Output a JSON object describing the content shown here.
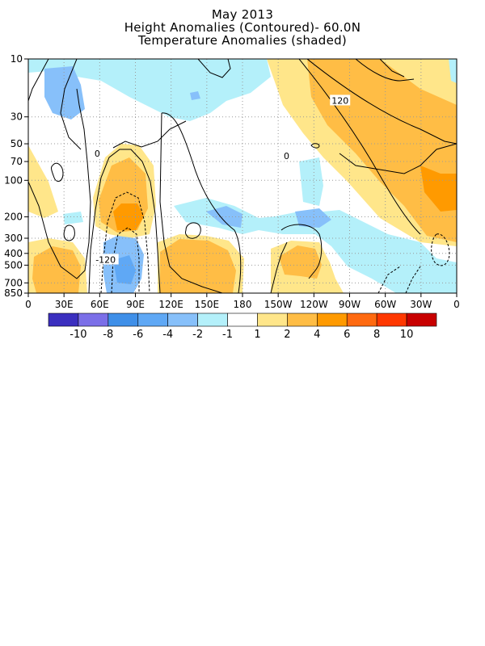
{
  "title": "May 2013",
  "subtitle1": "Height Anomalies (Contoured)- 60.0N",
  "subtitle2": "Temperature Anomalies (shaded)",
  "chart_data": {
    "type": "heatmap",
    "x_tick_labels": [
      "0",
      "30E",
      "60E",
      "90E",
      "120E",
      "150E",
      "180",
      "150W",
      "120W",
      "90W",
      "60W",
      "30W",
      "0"
    ],
    "y_tick_labels": [
      "10",
      "30",
      "50",
      "70",
      "100",
      "200",
      "300",
      "400",
      "500",
      "700",
      "850"
    ],
    "y_levels_hPa": [
      10,
      30,
      50,
      70,
      100,
      200,
      300,
      400,
      500,
      700,
      850
    ],
    "y_scale": "log-pressure, inverted",
    "grid": "dotted",
    "contour_labels": [
      {
        "text": "120",
        "lon": 262,
        "p": 22
      },
      {
        "text": "0",
        "lon": 58,
        "p": 60
      },
      {
        "text": "0",
        "lon": 217,
        "p": 63
      },
      {
        "text": "-120",
        "lon": 65,
        "p": 450
      }
    ],
    "colorbar": {
      "labels": [
        "-10",
        "-8",
        "-6",
        "-4",
        "-2",
        "-1",
        "1",
        "2",
        "4",
        "6",
        "8",
        "10"
      ],
      "colors": [
        "#3b2fbf",
        "#7b6fe8",
        "#3f8fe8",
        "#5fa8f5",
        "#87c0fa",
        "#b4f0fa",
        "#ffffff",
        "#ffe68a",
        "#ffbd45",
        "#ff9a00",
        "#ff6a10",
        "#ff3800",
        "#c80000"
      ]
    }
  }
}
